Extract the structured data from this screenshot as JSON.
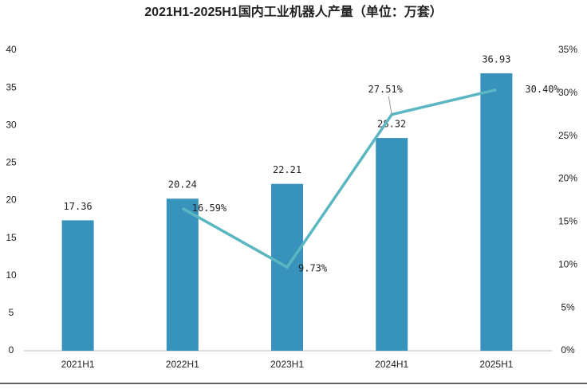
{
  "chart_data": {
    "type": "bar",
    "title": "2021H1-2025H1国内工业机器人产量（单位：万套）",
    "categories": [
      "2021H1",
      "2022H1",
      "2023H1",
      "2024H1",
      "2025H1"
    ],
    "series": [
      {
        "type": "bar",
        "color": "#3893bc",
        "values": [
          17.36,
          20.24,
          22.21,
          28.32,
          36.93
        ]
      },
      {
        "type": "line",
        "axis": "y2",
        "color": "#5ab6c0",
        "values": [
          null,
          16.59,
          9.73,
          27.51,
          30.4
        ],
        "value_labels": [
          null,
          "16.59%",
          "9.73%",
          "27.51%",
          "30.40%"
        ]
      }
    ],
    "ylim": [
      0,
      40
    ],
    "yticks": [
      0,
      5,
      10,
      15,
      20,
      25,
      30,
      35,
      40
    ],
    "y2lim": [
      0,
      35
    ],
    "y2ticks": [
      {
        "value": 0,
        "label": "0%"
      },
      {
        "value": 5,
        "label": "5%"
      },
      {
        "value": 10,
        "label": "10%"
      },
      {
        "value": 15,
        "label": "15%"
      },
      {
        "value": 20,
        "label": "20%"
      },
      {
        "value": 25,
        "label": "25%"
      },
      {
        "value": 30,
        "label": "30%"
      },
      {
        "value": 35,
        "label": "35%"
      }
    ]
  }
}
